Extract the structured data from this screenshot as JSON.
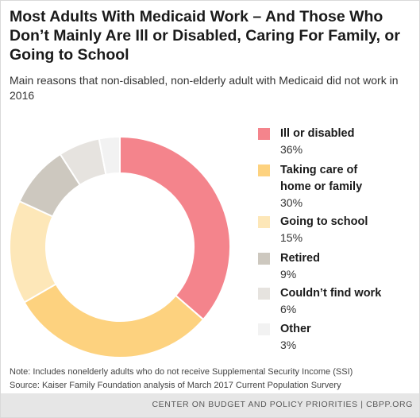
{
  "chart_data": {
    "type": "pie",
    "donut": true,
    "title": "Most Adults With Medicaid Work – And Those Who Don’t Mainly Are Ill or Disabled, Caring For Family, or Going to School",
    "subtitle": "Main reasons that non-disabled, non-elderly adult with Medicaid did not work in 2016",
    "unit": "%",
    "legend_position": "right",
    "categories": [
      "Ill or disabled",
      "Taking care of home or family",
      "Going to school",
      "Retired",
      "Couldn’t find work",
      "Other"
    ],
    "values": [
      36,
      30,
      15,
      9,
      6,
      3
    ],
    "value_labels": [
      "36%",
      "30%",
      "15%",
      "9%",
      "6%",
      "3%"
    ],
    "colors": [
      "#f4848c",
      "#fdd27f",
      "#fde7b8",
      "#cdc8bf",
      "#e6e3df",
      "#f2f2f2"
    ],
    "legend_lines": [
      [
        "Ill or disabled"
      ],
      [
        "Taking care of",
        "home or family"
      ],
      [
        "Going to school"
      ],
      [
        "Retired"
      ],
      [
        "Couldn’t find work"
      ],
      [
        "Other"
      ]
    ]
  },
  "notes": {
    "note": "Note: Includes nonelderly adults who do not receive Supplemental Security Income (SSI)",
    "source": "Source: Kaiser Family Foundation analysis of March 2017 Current Population Survery"
  },
  "footer": {
    "text": "CENTER ON BUDGET AND POLICY PRIORITIES | CBPP.ORG"
  }
}
